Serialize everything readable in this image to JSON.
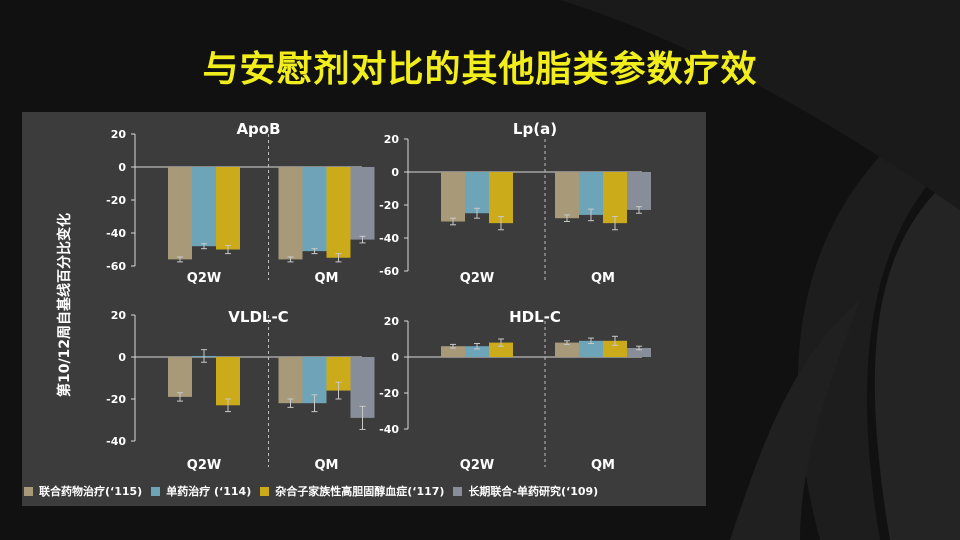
{
  "title": "与安慰剂对比的其他脂类参数疗效",
  "ylabel": "第10/12周自基线百分比变化",
  "colors": {
    "combo": "#a89a78",
    "mono": "#6ea4b8",
    "hefh": "#ccab1a",
    "longterm": "#888e99",
    "background": "#111111",
    "panel": "#3c3c3c",
    "title": "#f2ee1b"
  },
  "legend": [
    {
      "label": "联合药物治疗(‘115)",
      "color": "#a89a78"
    },
    {
      "label": "单药治疗 (‘114)",
      "color": "#6ea4b8"
    },
    {
      "label": "杂合子家族性高胆固醇血症(‘117)",
      "color": "#ccab1a"
    },
    {
      "label": "长期联合-单药研究(‘109)",
      "color": "#888e99"
    }
  ],
  "chart_data": [
    {
      "type": "bar",
      "title": "ApoB",
      "groups": [
        "Q2W",
        "QM"
      ],
      "ylim": [
        -60,
        20
      ],
      "yticks": [
        20,
        0,
        -20,
        -40,
        -60
      ],
      "series": [
        {
          "name": "联合药物治疗(‘115)",
          "values": [
            -56,
            -56
          ],
          "errors": [
            1.5,
            1.5
          ]
        },
        {
          "name": "单药治疗 (‘114)",
          "values": [
            -48,
            -51
          ],
          "errors": [
            1.5,
            1.5
          ]
        },
        {
          "name": "杂合子家族性高胆固醇血症(‘117)",
          "values": [
            -50,
            -55
          ],
          "errors": [
            2.5,
            2.5
          ]
        },
        {
          "name": "长期联合-单药研究(‘109)",
          "values": [
            null,
            -44
          ],
          "errors": [
            null,
            2
          ]
        }
      ]
    },
    {
      "type": "bar",
      "title": "Lp(a)",
      "groups": [
        "Q2W",
        "QM"
      ],
      "ylim": [
        -60,
        20
      ],
      "yticks": [
        20,
        0,
        -20,
        -40,
        -60
      ],
      "series": [
        {
          "name": "联合药物治疗(‘115)",
          "values": [
            -30,
            -28
          ],
          "errors": [
            2,
            2
          ]
        },
        {
          "name": "单药治疗 (‘114)",
          "values": [
            -25,
            -26
          ],
          "errors": [
            3,
            3.5
          ]
        },
        {
          "name": "杂合子家族性高胆固醇血症(‘117)",
          "values": [
            -31,
            -31
          ],
          "errors": [
            4,
            4
          ]
        },
        {
          "name": "长期联合-单药研究(‘109)",
          "values": [
            null,
            -23
          ],
          "errors": [
            null,
            2
          ]
        }
      ]
    },
    {
      "type": "bar",
      "title": "VLDL-C",
      "groups": [
        "Q2W",
        "QM"
      ],
      "ylim": [
        -40,
        20
      ],
      "yticks": [
        20,
        0,
        -20,
        -40
      ],
      "series": [
        {
          "name": "联合药物治疗(‘115)",
          "values": [
            -19,
            -22
          ],
          "errors": [
            2,
            2
          ]
        },
        {
          "name": "单药治疗 (‘114)",
          "values": [
            0.5,
            -22
          ],
          "errors": [
            3,
            4
          ]
        },
        {
          "name": "杂合子家族性高胆固醇血症(‘117)",
          "values": [
            -23,
            -16
          ],
          "errors": [
            3,
            4
          ]
        },
        {
          "name": "长期联合-单药研究(‘109)",
          "values": [
            null,
            -29
          ],
          "errors": [
            null,
            5.5
          ]
        }
      ]
    },
    {
      "type": "bar",
      "title": "HDL-C",
      "groups": [
        "Q2W",
        "QM"
      ],
      "ylim": [
        -40,
        20
      ],
      "yticks": [
        20,
        0,
        -20,
        -40
      ],
      "series": [
        {
          "name": "联合药物治疗(‘115)",
          "values": [
            6,
            8
          ],
          "errors": [
            1,
            1
          ]
        },
        {
          "name": "单药治疗 (‘114)",
          "values": [
            6,
            9
          ],
          "errors": [
            1.5,
            1.5
          ]
        },
        {
          "name": "杂合子家族性高胆固醇血症(‘117)",
          "values": [
            8,
            9
          ],
          "errors": [
            2,
            2.5
          ]
        },
        {
          "name": "长期联合-单药研究(‘109)",
          "values": [
            null,
            5
          ],
          "errors": [
            null,
            1
          ]
        }
      ]
    }
  ]
}
